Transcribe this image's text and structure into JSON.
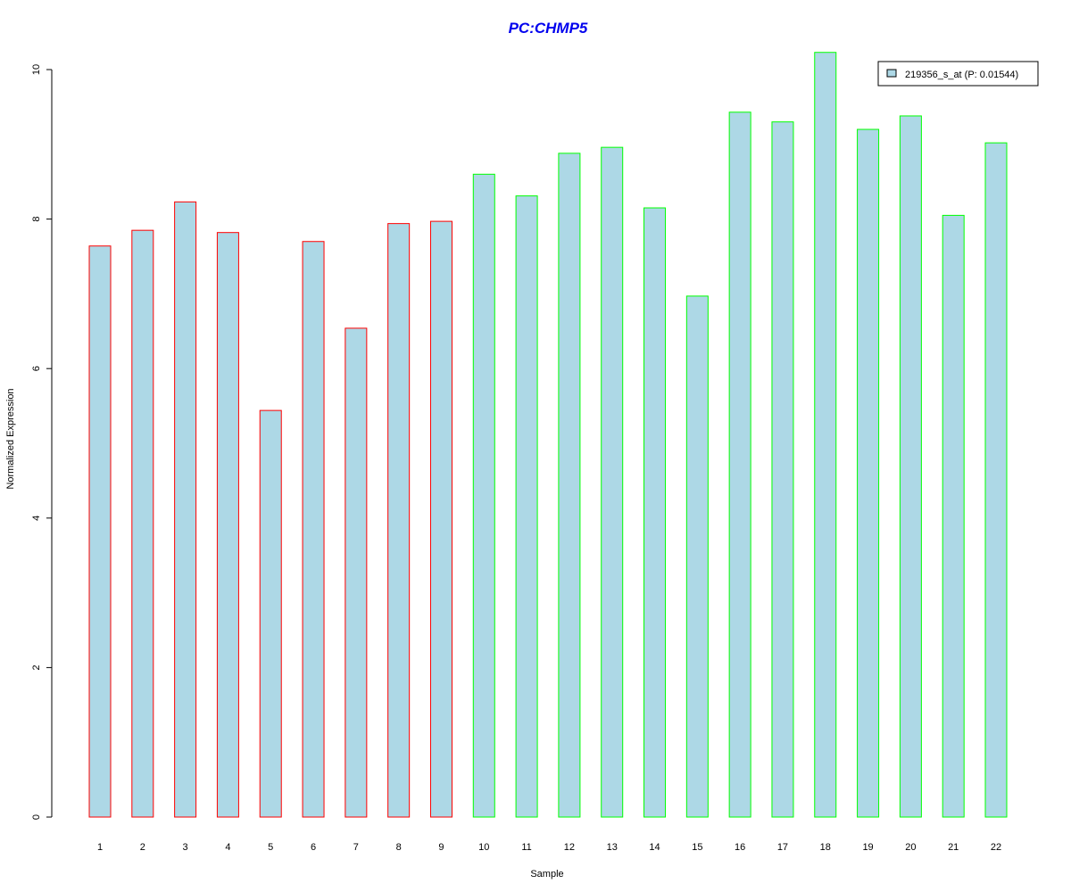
{
  "chart_data": {
    "type": "bar",
    "title": "PC:CHMP5",
    "xlabel": "Sample",
    "ylabel": "Normalized Expression",
    "ylim": [
      0,
      10
    ],
    "yticks": [
      0,
      2,
      4,
      6,
      8,
      10
    ],
    "grid": false,
    "legend": {
      "placement": "top-right",
      "entries": [
        "219356_s_at (P: 0.01544)"
      ]
    },
    "categories": [
      "1",
      "2",
      "3",
      "4",
      "5",
      "6",
      "7",
      "8",
      "9",
      "10",
      "11",
      "12",
      "13",
      "14",
      "15",
      "16",
      "17",
      "18",
      "19",
      "20",
      "21",
      "22"
    ],
    "values": [
      7.64,
      7.85,
      8.23,
      7.82,
      5.44,
      7.7,
      6.54,
      7.94,
      7.97,
      8.6,
      8.31,
      8.88,
      8.96,
      8.15,
      6.97,
      9.43,
      9.3,
      10.23,
      9.2,
      9.38,
      8.05,
      9.02
    ],
    "groups": [
      "red",
      "red",
      "red",
      "red",
      "red",
      "red",
      "red",
      "red",
      "red",
      "green",
      "green",
      "green",
      "green",
      "green",
      "green",
      "green",
      "green",
      "green",
      "green",
      "green",
      "green",
      "green"
    ],
    "colors": {
      "fill": "#add8e6",
      "red": "#ff0000",
      "green": "#00ff00",
      "title": "#0000ee"
    }
  }
}
